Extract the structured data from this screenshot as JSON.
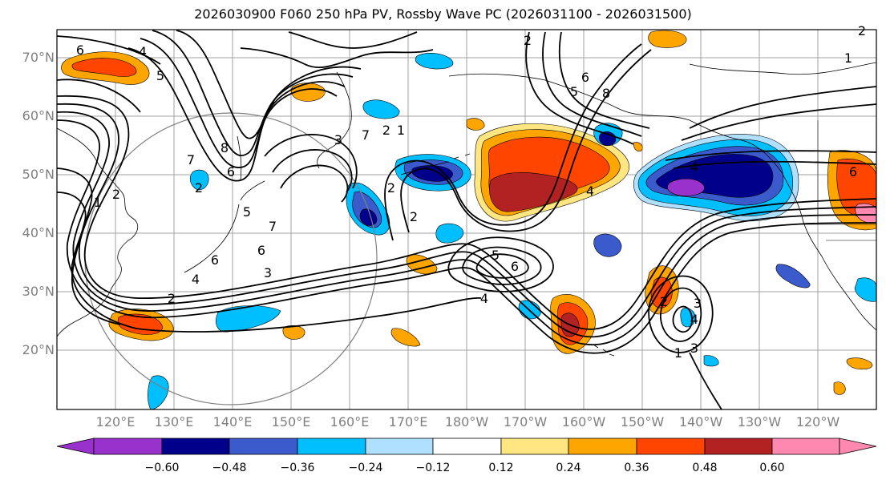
{
  "title": "2026030900 F060 250 hPa PV, Rossby Wave PC (2026031100 - 2026031500)",
  "lat_labels": [
    "70°N",
    "60°N",
    "50°N",
    "40°N",
    "30°N",
    "20°N"
  ],
  "lon_labels": [
    "120°E",
    "130°E",
    "140°E",
    "150°E",
    "160°E",
    "170°E",
    "180°W",
    "170°W",
    "160°W",
    "150°W",
    "140°W",
    "130°W",
    "120°W"
  ],
  "colorbar": {
    "ticks": [
      "−0.60",
      "−0.48",
      "−0.36",
      "−0.24",
      "−0.12",
      "0.12",
      "0.24",
      "0.36",
      "0.48",
      "0.60"
    ],
    "colors": [
      "#9932cc",
      "#00008b",
      "#3b5bcc",
      "#00bfff",
      "#b0e0ff",
      "#ffffff",
      "#ffe680",
      "#ffa500",
      "#ff4500",
      "#b22222",
      "#ff88b0"
    ]
  },
  "contour_labels": [
    "6",
    "5",
    "4",
    "7",
    "2",
    "1",
    "2",
    "6",
    "8",
    "7",
    "5",
    "3",
    "2",
    "1",
    "6",
    "7",
    "6",
    "3",
    "2",
    "4",
    "2",
    "5",
    "6",
    "4",
    "8",
    "6",
    "4",
    "5",
    "2",
    "3",
    "4",
    "1",
    "6",
    "2",
    "4",
    "3",
    "2",
    "2",
    "1"
  ]
}
